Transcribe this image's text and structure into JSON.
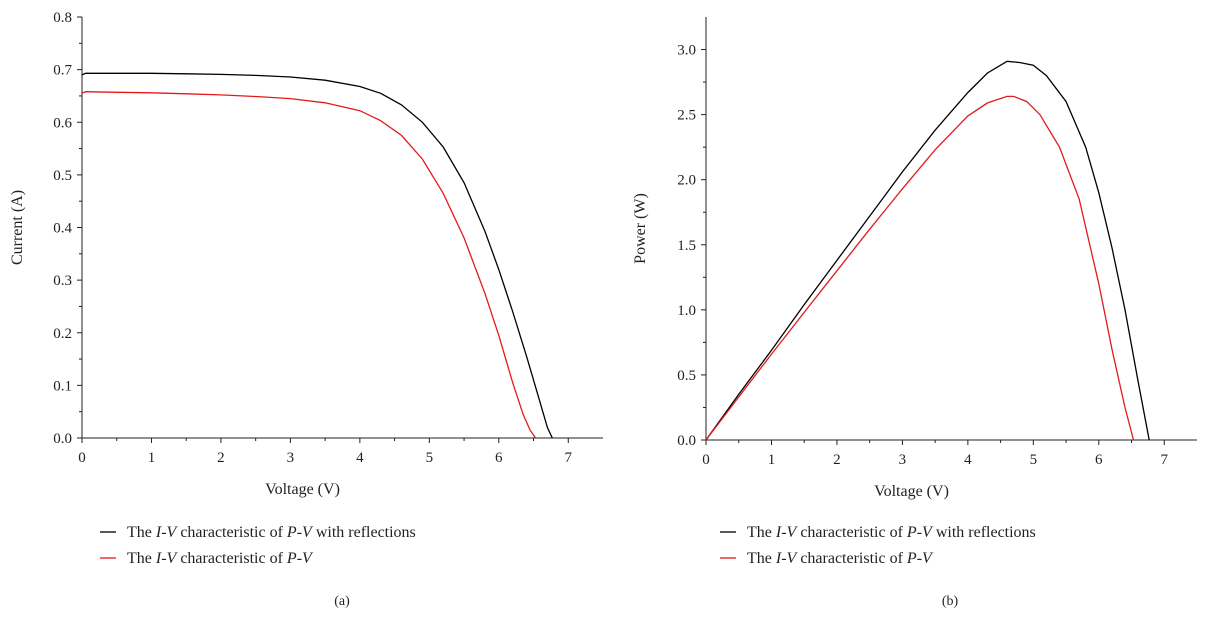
{
  "chart_data": [
    {
      "type": "line",
      "panel_label": "(a)",
      "xlabel": "Voltage (V)",
      "ylabel": "Current (A)",
      "xlim": [
        0,
        7.5
      ],
      "ylim": [
        0,
        0.8
      ],
      "xticks": [
        "0",
        "1",
        "2",
        "3",
        "4",
        "5",
        "6",
        "7"
      ],
      "yticks": [
        "0.0",
        "0.1",
        "0.2",
        "0.3",
        "0.4",
        "0.5",
        "0.6",
        "0.7",
        "0.8"
      ],
      "grid": false,
      "legend_position": "bottom",
      "series": [
        {
          "name_parts": [
            "The ",
            "I",
            "-",
            "V",
            " characteristic of ",
            "P",
            "-",
            "V",
            " with reflections"
          ],
          "color": "#000000",
          "x": [
            0.0,
            0.05,
            0.5,
            1.0,
            1.5,
            2.0,
            2.5,
            3.0,
            3.5,
            4.0,
            4.3,
            4.6,
            4.9,
            5.2,
            5.5,
            5.8,
            6.0,
            6.2,
            6.4,
            6.6,
            6.7,
            6.77
          ],
          "y": [
            0.69,
            0.693,
            0.693,
            0.693,
            0.692,
            0.691,
            0.689,
            0.686,
            0.68,
            0.668,
            0.655,
            0.633,
            0.6,
            0.553,
            0.485,
            0.393,
            0.32,
            0.24,
            0.155,
            0.065,
            0.02,
            0.0
          ]
        },
        {
          "name_parts": [
            "The ",
            "I",
            "-",
            "V",
            " characteristic of ",
            "P",
            "-",
            "V"
          ],
          "color": "#e31a1c",
          "x": [
            0.0,
            0.05,
            0.5,
            1.0,
            1.5,
            2.0,
            2.5,
            3.0,
            3.5,
            4.0,
            4.3,
            4.6,
            4.9,
            5.2,
            5.5,
            5.8,
            6.0,
            6.2,
            6.35,
            6.45,
            6.53
          ],
          "y": [
            0.655,
            0.658,
            0.657,
            0.656,
            0.654,
            0.652,
            0.649,
            0.645,
            0.637,
            0.622,
            0.603,
            0.575,
            0.53,
            0.465,
            0.38,
            0.275,
            0.195,
            0.105,
            0.045,
            0.015,
            0.0
          ]
        }
      ]
    },
    {
      "type": "line",
      "panel_label": "(b)",
      "xlabel": "Voltage (V)",
      "ylabel": "Power (W)",
      "xlim": [
        0,
        7.5
      ],
      "ylim": [
        0,
        3.25
      ],
      "xticks": [
        "0",
        "1",
        "2",
        "3",
        "4",
        "5",
        "6",
        "7"
      ],
      "yticks": [
        "0.0",
        "0.5",
        "1.0",
        "1.5",
        "2.0",
        "2.5",
        "3.0"
      ],
      "grid": false,
      "legend_position": "bottom",
      "series": [
        {
          "name_parts": [
            "The ",
            "I",
            "-",
            "V",
            " characteristic of ",
            "P",
            "-",
            "V",
            " with reflections"
          ],
          "color": "#000000",
          "x": [
            0.0,
            0.5,
            1.0,
            1.5,
            2.0,
            2.5,
            3.0,
            3.5,
            4.0,
            4.3,
            4.6,
            4.8,
            5.0,
            5.2,
            5.5,
            5.8,
            6.0,
            6.2,
            6.4,
            6.6,
            6.77
          ],
          "y": [
            0.0,
            0.35,
            0.69,
            1.04,
            1.38,
            1.72,
            2.06,
            2.38,
            2.67,
            2.82,
            2.91,
            2.9,
            2.88,
            2.8,
            2.6,
            2.25,
            1.9,
            1.48,
            1.0,
            0.45,
            0.0
          ]
        },
        {
          "name_parts": [
            "The ",
            "I",
            "-",
            "V",
            " characteristic of ",
            "P",
            "-",
            "V"
          ],
          "color": "#e31a1c",
          "x": [
            0.0,
            0.5,
            1.0,
            1.5,
            2.0,
            2.5,
            3.0,
            3.5,
            4.0,
            4.3,
            4.6,
            4.7,
            4.9,
            5.1,
            5.4,
            5.7,
            6.0,
            6.2,
            6.4,
            6.53
          ],
          "y": [
            0.0,
            0.33,
            0.66,
            0.98,
            1.3,
            1.62,
            1.93,
            2.23,
            2.49,
            2.59,
            2.64,
            2.64,
            2.6,
            2.5,
            2.25,
            1.85,
            1.2,
            0.7,
            0.25,
            0.0
          ]
        }
      ]
    }
  ]
}
